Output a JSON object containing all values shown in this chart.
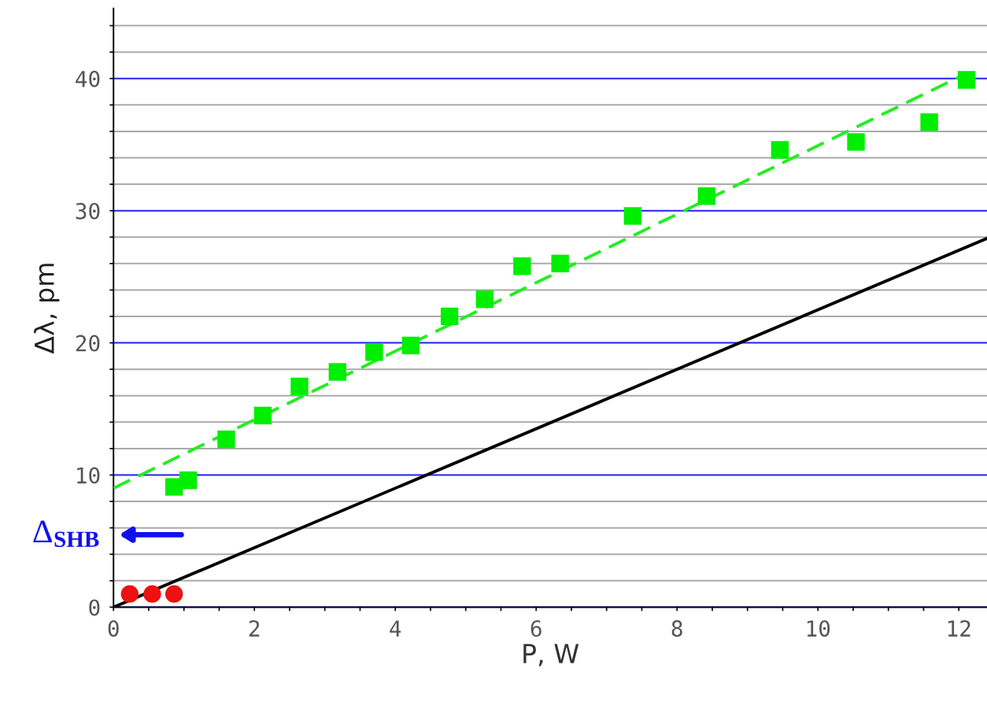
{
  "chart_data": {
    "type": "scatter",
    "xlabel": "P, W",
    "ylabel": "Δλ, pm",
    "xlim": [
      0,
      12.4
    ],
    "ylim": [
      0,
      45.3
    ],
    "xticks": [
      0,
      {
        "value": 0.5,
        "label": null
      },
      {
        "value": 1,
        "label": null
      },
      {
        "value": 1.5,
        "label": null
      },
      2,
      {
        "value": 2.5,
        "label": null
      },
      {
        "value": 3,
        "label": null
      },
      {
        "value": 3.5,
        "label": null
      },
      4,
      {
        "value": 4.5,
        "label": null
      },
      {
        "value": 5,
        "label": null
      },
      {
        "value": 5.5,
        "label": null
      },
      6,
      {
        "value": 6.5,
        "label": null
      },
      {
        "value": 7,
        "label": null
      },
      {
        "value": 7.5,
        "label": null
      },
      8,
      {
        "value": 8.5,
        "label": null
      },
      {
        "value": 9,
        "label": null
      },
      {
        "value": 9.5,
        "label": null
      },
      10,
      {
        "value": 10.5,
        "label": null
      },
      {
        "value": 11,
        "label": null
      },
      {
        "value": 11.5,
        "label": null
      },
      12
    ],
    "yticks": [
      0,
      {
        "value": 2,
        "label": null
      },
      {
        "value": 4,
        "label": null
      },
      {
        "value": 6,
        "label": null
      },
      {
        "value": 8,
        "label": null
      },
      10,
      {
        "value": 12,
        "label": null
      },
      {
        "value": 14,
        "label": null
      },
      {
        "value": 16,
        "label": null
      },
      {
        "value": 18,
        "label": null
      },
      20,
      {
        "value": 22,
        "label": null
      },
      {
        "value": 24,
        "label": null
      },
      {
        "value": 26,
        "label": null
      },
      {
        "value": 28,
        "label": null
      },
      30,
      {
        "value": 32,
        "label": null
      },
      {
        "value": 34,
        "label": null
      },
      {
        "value": 36,
        "label": null
      },
      {
        "value": 38,
        "label": null
      },
      40,
      {
        "value": 42,
        "label": null
      },
      {
        "value": 44,
        "label": null
      }
    ],
    "grid": "y",
    "legend": false,
    "series": [
      {
        "type": "line",
        "color": "#22ee22",
        "line_style": "dashed",
        "marker": "none",
        "x": [
          0,
          12.0
        ],
        "values": [
          9.0,
          40.1
        ]
      },
      {
        "type": "line",
        "color": "#000000",
        "line_style": "solid",
        "marker": "none",
        "x": [
          0,
          12.4
        ],
        "values": [
          0,
          27.9
        ]
      },
      {
        "color": "#00ee00",
        "marker": "square",
        "x": [
          0.86,
          1.06,
          1.6,
          2.12,
          2.64,
          3.18,
          3.7,
          4.22,
          4.77,
          5.27,
          5.8,
          6.34,
          7.37,
          8.42,
          9.46,
          10.54,
          11.58,
          12.11
        ],
        "values": [
          9.1,
          9.6,
          12.7,
          14.5,
          16.7,
          17.8,
          19.3,
          19.8,
          22.0,
          23.3,
          25.8,
          26.0,
          29.6,
          31.1,
          34.6,
          35.2,
          36.7,
          39.9
        ]
      },
      {
        "color": "#ee1111",
        "marker": "circle",
        "x": [
          0.23,
          0.55,
          0.86
        ],
        "values": [
          1.0,
          1.0,
          1.0
        ]
      }
    ],
    "annotations": [
      "Δ$_{SHB}$"
    ]
  }
}
